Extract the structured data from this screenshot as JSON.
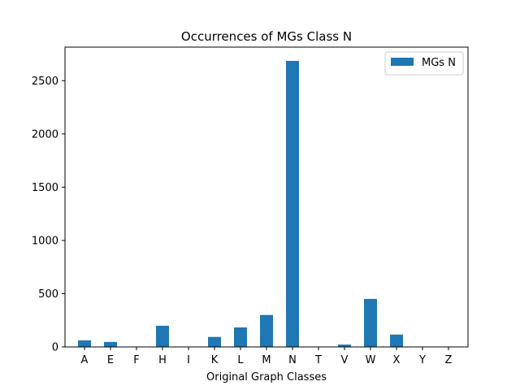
{
  "chart_data": {
    "type": "bar",
    "title": "Occurrences of MGs Class N",
    "xlabel": "Original Graph Classes",
    "ylabel": "",
    "categories": [
      "A",
      "E",
      "F",
      "H",
      "I",
      "K",
      "L",
      "M",
      "N",
      "T",
      "V",
      "W",
      "X",
      "Y",
      "Z"
    ],
    "series": [
      {
        "name": "MGs N",
        "color": "#1f77b4",
        "values": [
          62,
          47,
          0,
          199,
          0,
          94,
          183,
          300,
          2686,
          0,
          22,
          451,
          116,
          0,
          0
        ]
      }
    ],
    "ylim": [
      0,
      2815
    ],
    "yticks": [
      0,
      500,
      1000,
      1500,
      2000,
      2500
    ],
    "grid": false,
    "legend_position": "top-right"
  }
}
